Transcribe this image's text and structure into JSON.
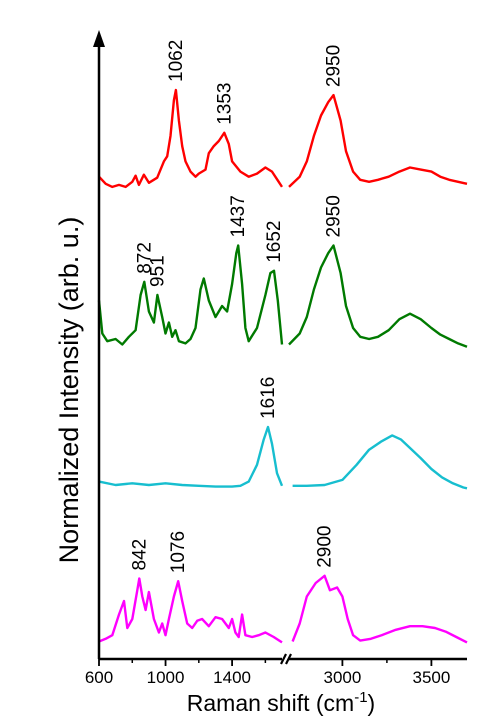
{
  "chart_data": {
    "type": "line",
    "title": "",
    "xlabel": "Raman shift (cm",
    "xlabel_sup": "-1",
    "xlabel_close": ")",
    "ylabel": "Normalized Intensity (arb. u.)",
    "x_axis": {
      "broken": true,
      "segments": [
        [
          600,
          1700
        ],
        [
          2700,
          3700
        ]
      ],
      "ticks": [
        {
          "value": 600,
          "label": "600"
        },
        {
          "value": 1000,
          "label": "1000"
        },
        {
          "value": 1400,
          "label": "1400"
        },
        {
          "value": 3000,
          "label": "3000"
        },
        {
          "value": 3500,
          "label": "3500"
        }
      ]
    },
    "y_axis": {
      "ticks": false,
      "offset_stacked": true
    },
    "grid": false,
    "legend": "none",
    "series": [
      {
        "color": "#ff0000",
        "points": [
          [
            600,
            0.15
          ],
          [
            640,
            0.08
          ],
          [
            680,
            0.05
          ],
          [
            720,
            0.07
          ],
          [
            760,
            0.05
          ],
          [
            800,
            0.1
          ],
          [
            820,
            0.16
          ],
          [
            840,
            0.07
          ],
          [
            870,
            0.17
          ],
          [
            900,
            0.09
          ],
          [
            950,
            0.14
          ],
          [
            990,
            0.3
          ],
          [
            1010,
            0.35
          ],
          [
            1030,
            0.55
          ],
          [
            1050,
            0.9
          ],
          [
            1062,
            1.0
          ],
          [
            1080,
            0.7
          ],
          [
            1100,
            0.45
          ],
          [
            1120,
            0.3
          ],
          [
            1150,
            0.2
          ],
          [
            1180,
            0.15
          ],
          [
            1200,
            0.18
          ],
          [
            1240,
            0.22
          ],
          [
            1260,
            0.38
          ],
          [
            1290,
            0.45
          ],
          [
            1320,
            0.5
          ],
          [
            1353,
            0.58
          ],
          [
            1380,
            0.47
          ],
          [
            1400,
            0.3
          ],
          [
            1450,
            0.2
          ],
          [
            1500,
            0.15
          ],
          [
            1550,
            0.18
          ],
          [
            1600,
            0.24
          ],
          [
            1640,
            0.2
          ],
          [
            1680,
            0.1
          ],
          [
            1700,
            0.05
          ],
          [
            2700,
            0.05
          ],
          [
            2760,
            0.15
          ],
          [
            2800,
            0.3
          ],
          [
            2840,
            0.55
          ],
          [
            2880,
            0.75
          ],
          [
            2920,
            0.88
          ],
          [
            2950,
            0.95
          ],
          [
            2990,
            0.7
          ],
          [
            3020,
            0.4
          ],
          [
            3060,
            0.2
          ],
          [
            3100,
            0.12
          ],
          [
            3150,
            0.1
          ],
          [
            3200,
            0.12
          ],
          [
            3260,
            0.15
          ],
          [
            3320,
            0.2
          ],
          [
            3380,
            0.24
          ],
          [
            3440,
            0.22
          ],
          [
            3500,
            0.2
          ],
          [
            3550,
            0.15
          ],
          [
            3600,
            0.12
          ],
          [
            3650,
            0.1
          ],
          [
            3700,
            0.08
          ]
        ]
      },
      {
        "color": "#007a00",
        "points": [
          [
            600,
            0.45
          ],
          [
            620,
            0.15
          ],
          [
            650,
            0.08
          ],
          [
            700,
            0.1
          ],
          [
            740,
            0.05
          ],
          [
            780,
            0.12
          ],
          [
            820,
            0.18
          ],
          [
            850,
            0.5
          ],
          [
            872,
            0.62
          ],
          [
            900,
            0.35
          ],
          [
            930,
            0.25
          ],
          [
            951,
            0.5
          ],
          [
            980,
            0.3
          ],
          [
            1000,
            0.15
          ],
          [
            1020,
            0.25
          ],
          [
            1040,
            0.12
          ],
          [
            1060,
            0.18
          ],
          [
            1080,
            0.08
          ],
          [
            1120,
            0.06
          ],
          [
            1150,
            0.1
          ],
          [
            1180,
            0.2
          ],
          [
            1210,
            0.55
          ],
          [
            1230,
            0.65
          ],
          [
            1260,
            0.45
          ],
          [
            1300,
            0.3
          ],
          [
            1340,
            0.4
          ],
          [
            1370,
            0.35
          ],
          [
            1400,
            0.6
          ],
          [
            1425,
            0.88
          ],
          [
            1437,
            0.95
          ],
          [
            1460,
            0.6
          ],
          [
            1480,
            0.2
          ],
          [
            1500,
            0.08
          ],
          [
            1550,
            0.2
          ],
          [
            1600,
            0.5
          ],
          [
            1630,
            0.7
          ],
          [
            1652,
            0.72
          ],
          [
            1675,
            0.45
          ],
          [
            1700,
            0.05
          ],
          [
            2700,
            0.05
          ],
          [
            2760,
            0.15
          ],
          [
            2800,
            0.3
          ],
          [
            2840,
            0.55
          ],
          [
            2880,
            0.75
          ],
          [
            2920,
            0.88
          ],
          [
            2950,
            0.95
          ],
          [
            2990,
            0.7
          ],
          [
            3020,
            0.4
          ],
          [
            3060,
            0.2
          ],
          [
            3100,
            0.12
          ],
          [
            3150,
            0.1
          ],
          [
            3200,
            0.12
          ],
          [
            3260,
            0.18
          ],
          [
            3320,
            0.28
          ],
          [
            3380,
            0.33
          ],
          [
            3440,
            0.28
          ],
          [
            3500,
            0.2
          ],
          [
            3550,
            0.14
          ],
          [
            3600,
            0.1
          ],
          [
            3650,
            0.06
          ],
          [
            3700,
            0.03
          ]
        ]
      },
      {
        "color": "#17becf",
        "points": [
          [
            600,
            0.1
          ],
          [
            700,
            0.06
          ],
          [
            800,
            0.08
          ],
          [
            900,
            0.06
          ],
          [
            1000,
            0.08
          ],
          [
            1100,
            0.06
          ],
          [
            1200,
            0.05
          ],
          [
            1300,
            0.04
          ],
          [
            1400,
            0.04
          ],
          [
            1450,
            0.05
          ],
          [
            1500,
            0.1
          ],
          [
            1550,
            0.3
          ],
          [
            1590,
            0.6
          ],
          [
            1616,
            0.75
          ],
          [
            1640,
            0.55
          ],
          [
            1670,
            0.2
          ],
          [
            1700,
            0.05
          ],
          [
            2720,
            0.05
          ],
          [
            2800,
            0.05
          ],
          [
            2900,
            0.06
          ],
          [
            3000,
            0.12
          ],
          [
            3080,
            0.3
          ],
          [
            3150,
            0.48
          ],
          [
            3220,
            0.58
          ],
          [
            3280,
            0.65
          ],
          [
            3330,
            0.6
          ],
          [
            3380,
            0.5
          ],
          [
            3440,
            0.38
          ],
          [
            3500,
            0.25
          ],
          [
            3560,
            0.15
          ],
          [
            3620,
            0.08
          ],
          [
            3680,
            0.03
          ],
          [
            3700,
            0.02
          ]
        ]
      },
      {
        "color": "#ff00ff",
        "points": [
          [
            600,
            0.05
          ],
          [
            640,
            0.08
          ],
          [
            680,
            0.12
          ],
          [
            720,
            0.35
          ],
          [
            750,
            0.5
          ],
          [
            770,
            0.2
          ],
          [
            800,
            0.3
          ],
          [
            830,
            0.62
          ],
          [
            842,
            0.75
          ],
          [
            860,
            0.55
          ],
          [
            880,
            0.4
          ],
          [
            900,
            0.6
          ],
          [
            930,
            0.3
          ],
          [
            960,
            0.15
          ],
          [
            980,
            0.25
          ],
          [
            1000,
            0.12
          ],
          [
            1020,
            0.3
          ],
          [
            1050,
            0.55
          ],
          [
            1076,
            0.72
          ],
          [
            1100,
            0.5
          ],
          [
            1130,
            0.25
          ],
          [
            1160,
            0.2
          ],
          [
            1190,
            0.28
          ],
          [
            1220,
            0.3
          ],
          [
            1260,
            0.22
          ],
          [
            1300,
            0.32
          ],
          [
            1340,
            0.3
          ],
          [
            1380,
            0.2
          ],
          [
            1400,
            0.3
          ],
          [
            1420,
            0.15
          ],
          [
            1440,
            0.1
          ],
          [
            1460,
            0.35
          ],
          [
            1480,
            0.12
          ],
          [
            1520,
            0.1
          ],
          [
            1560,
            0.12
          ],
          [
            1600,
            0.15
          ],
          [
            1650,
            0.1
          ],
          [
            1700,
            0.04
          ],
          [
            2720,
            0.05
          ],
          [
            2760,
            0.25
          ],
          [
            2800,
            0.55
          ],
          [
            2850,
            0.7
          ],
          [
            2900,
            0.78
          ],
          [
            2930,
            0.62
          ],
          [
            2970,
            0.65
          ],
          [
            3000,
            0.55
          ],
          [
            3030,
            0.3
          ],
          [
            3060,
            0.12
          ],
          [
            3100,
            0.06
          ],
          [
            3160,
            0.08
          ],
          [
            3220,
            0.12
          ],
          [
            3300,
            0.18
          ],
          [
            3380,
            0.22
          ],
          [
            3450,
            0.22
          ],
          [
            3520,
            0.2
          ],
          [
            3580,
            0.16
          ],
          [
            3640,
            0.1
          ],
          [
            3700,
            0.04
          ]
        ]
      }
    ],
    "peak_labels": [
      {
        "text": "1062",
        "series": 0,
        "x": 1062
      },
      {
        "text": "1353",
        "series": 0,
        "x": 1353
      },
      {
        "text": "2950",
        "series": 0,
        "x": 2950
      },
      {
        "text": "872",
        "series": 1,
        "x": 872
      },
      {
        "text": "951",
        "series": 1,
        "x": 951
      },
      {
        "text": "1437",
        "series": 1,
        "x": 1437
      },
      {
        "text": "1652",
        "series": 1,
        "x": 1652
      },
      {
        "text": "2950",
        "series": 1,
        "x": 2950
      },
      {
        "text": "1616",
        "series": 2,
        "x": 1616
      },
      {
        "text": "842",
        "series": 3,
        "x": 842
      },
      {
        "text": "1076",
        "series": 3,
        "x": 1076
      },
      {
        "text": "2900",
        "series": 3,
        "x": 2900
      }
    ]
  }
}
